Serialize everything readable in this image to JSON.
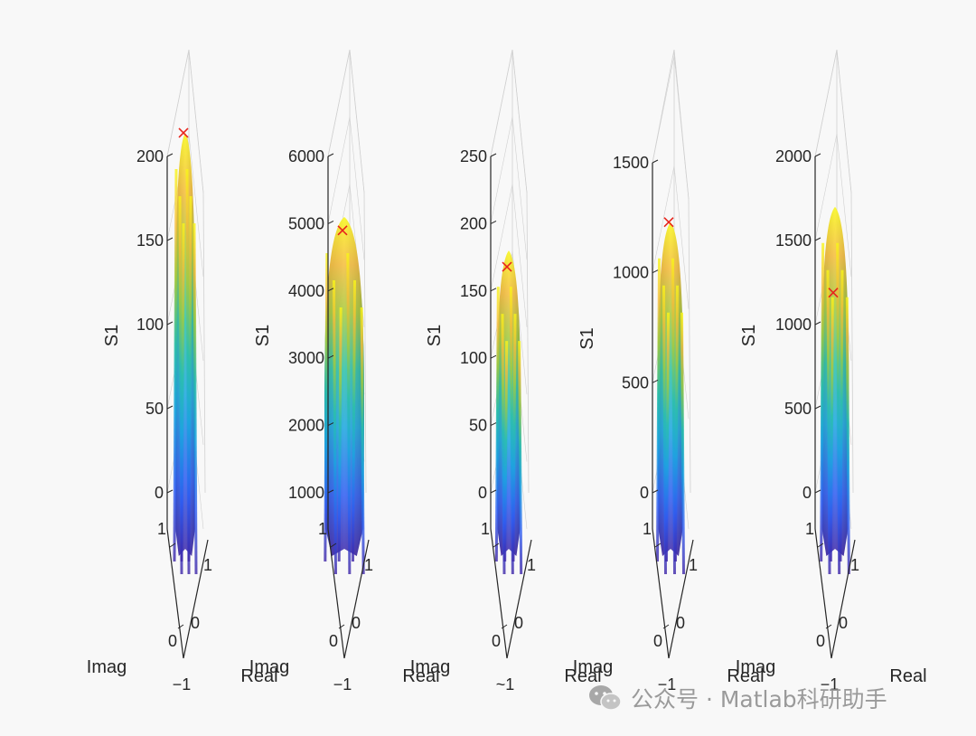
{
  "watermark": {
    "text": "公众号 · Matlab科研助手",
    "icon": "wechat-icon"
  },
  "colors": {
    "marker": "#e8241c",
    "axis": "#262626",
    "grid": "#d0d0d0"
  },
  "chart_data": [
    {
      "type": "surface3d",
      "zlabel": "S1",
      "xlabel": "Real",
      "ylabel": "Imag",
      "zlim": [
        0,
        200
      ],
      "zticks": [
        0,
        50,
        100,
        150,
        200
      ],
      "xticks": [
        -1,
        0,
        1
      ],
      "yticks": [
        -1,
        0,
        1
      ],
      "tick_text": [
        "0",
        "50",
        "100",
        "150",
        "200"
      ],
      "base_tick_text": {
        "y_top": "1",
        "y_mid": "0",
        "x_top": "1",
        "x_mid": "0",
        "bottom": "−1"
      },
      "peak": {
        "z": 214,
        "marker": "x"
      },
      "surface_z_range": [
        0,
        214
      ]
    },
    {
      "type": "surface3d",
      "zlabel": "S1",
      "xlabel": "Real",
      "ylabel": "Imag",
      "zlim": [
        1000,
        6000
      ],
      "zticks": [
        1000,
        2000,
        3000,
        4000,
        5000,
        6000
      ],
      "xticks": [
        -1,
        0,
        1
      ],
      "yticks": [
        -1,
        0,
        1
      ],
      "tick_text": [
        "1000",
        "2000",
        "3000",
        "4000",
        "5000",
        "6000"
      ],
      "base_tick_text": {
        "y_top": "1",
        "y_mid": "0",
        "x_top": "1",
        "x_mid": "0",
        "bottom": "−1"
      },
      "peak": {
        "z": 4900,
        "marker": "x"
      },
      "surface_z_range": [
        500,
        5100
      ]
    },
    {
      "type": "surface3d",
      "zlabel": "S1",
      "xlabel": "Real",
      "ylabel": "Imag",
      "zlim": [
        0,
        250
      ],
      "zticks": [
        0,
        50,
        100,
        150,
        200,
        250
      ],
      "xticks": [
        -1,
        0,
        1
      ],
      "yticks": [
        -1,
        0,
        1
      ],
      "tick_text": [
        "0",
        "50",
        "100",
        "150",
        "200",
        "250"
      ],
      "base_tick_text": {
        "y_top": "1",
        "y_mid": "0",
        "x_top": "1",
        "x_mid": "0",
        "bottom": "~1"
      },
      "peak": {
        "z": 168,
        "marker": "x"
      },
      "surface_z_range": [
        0,
        180
      ]
    },
    {
      "type": "surface3d",
      "zlabel": "S1",
      "xlabel": "Real",
      "ylabel": "Imag",
      "zlim": [
        0,
        1500
      ],
      "zticks": [
        0,
        500,
        1000,
        1500
      ],
      "xticks": [
        -1,
        0,
        1
      ],
      "yticks": [
        -1,
        0,
        1
      ],
      "tick_text": [
        "0",
        "500",
        "1000",
        "1500"
      ],
      "base_tick_text": {
        "y_top": "1",
        "y_mid": "0",
        "x_top": "1",
        "x_mid": "0",
        "bottom": "−1"
      },
      "peak": {
        "z": 1230,
        "marker": "x"
      },
      "surface_z_range": [
        0,
        1230
      ]
    },
    {
      "type": "surface3d",
      "zlabel": "S1",
      "xlabel": "Real",
      "ylabel": "Imag",
      "zlim": [
        0,
        2000
      ],
      "zticks": [
        0,
        500,
        1000,
        1500,
        2000
      ],
      "xticks": [
        -1,
        0,
        1
      ],
      "yticks": [
        -1,
        0,
        1
      ],
      "tick_text": [
        "0",
        "500",
        "1000",
        "1500",
        "2000"
      ],
      "base_tick_text": {
        "y_top": "1",
        "y_mid": "0",
        "x_top": "1",
        "x_mid": "0",
        "bottom": "−1"
      },
      "peak": {
        "z": 1190,
        "marker": "x"
      },
      "surface_z_range": [
        0,
        1700
      ]
    }
  ]
}
